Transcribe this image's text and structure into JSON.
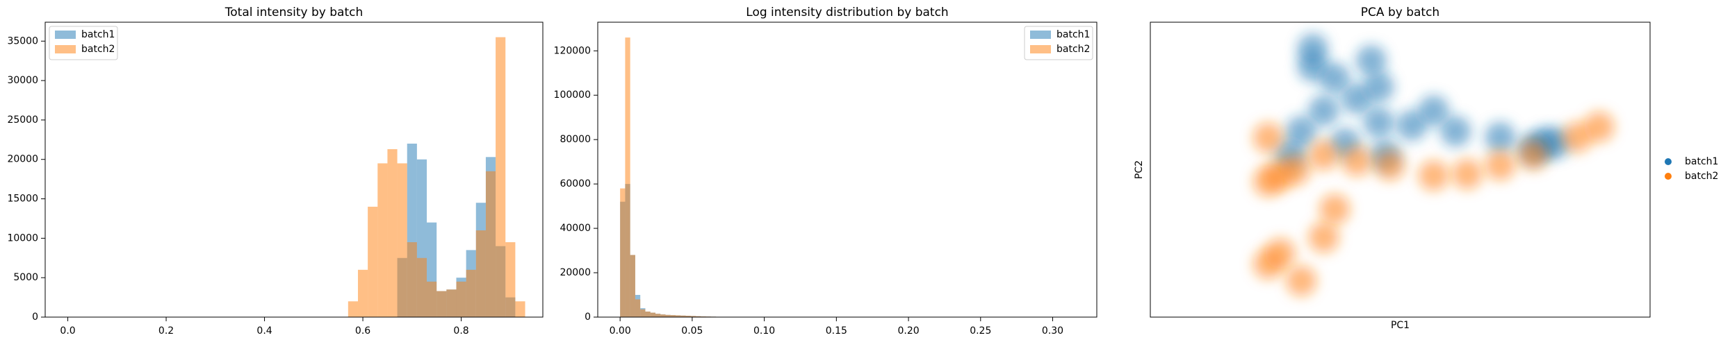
{
  "chart_data": [
    {
      "type": "histogram",
      "title": "Total intensity by batch",
      "alpha": 0.5,
      "legend": "upper left",
      "bins": [
        0.57,
        0.59,
        0.61,
        0.63,
        0.65,
        0.67,
        0.69,
        0.71,
        0.73,
        0.75,
        0.77,
        0.79,
        0.81,
        0.83,
        0.85,
        0.87,
        0.89,
        0.91,
        0.93
      ],
      "series": [
        {
          "name": "batch1",
          "color": "#1f77b4",
          "values": [
            0,
            0,
            0,
            0,
            0,
            7500,
            22000,
            20000,
            12000,
            3300,
            3500,
            5000,
            8500,
            14500,
            20300,
            9000,
            2500,
            0
          ]
        },
        {
          "name": "batch2",
          "color": "#ff7f0e",
          "values": [
            2000,
            6000,
            14000,
            19500,
            21300,
            19500,
            9500,
            7500,
            4500,
            3300,
            3500,
            4500,
            6000,
            11000,
            18500,
            35500,
            9500,
            2000
          ]
        }
      ],
      "xlim": [
        -0.046,
        0.966
      ],
      "ylim": [
        0,
        37400
      ],
      "xticks": [
        {
          "value": 0,
          "label": "0.0"
        },
        {
          "value": 0.2,
          "label": "0.2"
        },
        {
          "value": 0.4,
          "label": "0.4"
        },
        {
          "value": 0.6,
          "label": "0.6"
        },
        {
          "value": 0.8,
          "label": "0.8"
        }
      ],
      "yticks": [
        0,
        5000,
        10000,
        15000,
        20000,
        25000,
        30000,
        35000
      ]
    },
    {
      "type": "histogram",
      "title": "Log intensity distribution by batch",
      "alpha": 0.5,
      "legend": "upper right",
      "bins": [
        0,
        0.0035,
        0.007,
        0.0105,
        0.014,
        0.0175,
        0.021,
        0.0245,
        0.028,
        0.0315,
        0.035,
        0.0385,
        0.042,
        0.0455,
        0.049,
        0.0525,
        0.056,
        0.0595,
        0.063,
        0.0665,
        0.07
      ],
      "series": [
        {
          "name": "batch1",
          "color": "#1f77b4",
          "values": [
            52000,
            60000,
            28000,
            10000,
            4000,
            2500,
            2000,
            1500,
            1200,
            1000,
            900,
            800,
            700,
            600,
            500,
            400,
            300,
            250,
            200,
            150
          ]
        },
        {
          "name": "batch2",
          "color": "#ff7f0e",
          "values": [
            58000,
            126000,
            28000,
            8000,
            3500,
            2500,
            2000,
            1500,
            1200,
            1000,
            900,
            800,
            700,
            600,
            500,
            400,
            300,
            250,
            200,
            150
          ]
        }
      ],
      "xlim": [
        -0.0155,
        0.3306
      ],
      "ylim": [
        0,
        132900
      ],
      "xticks": [
        {
          "value": 0,
          "label": "0.00"
        },
        {
          "value": 0.05,
          "label": "0.05"
        },
        {
          "value": 0.1,
          "label": "0.10"
        },
        {
          "value": 0.15,
          "label": "0.15"
        },
        {
          "value": 0.2,
          "label": "0.20"
        },
        {
          "value": 0.25,
          "label": "0.25"
        },
        {
          "value": 0.3,
          "label": "0.30"
        }
      ],
      "yticks": [
        0,
        20000,
        40000,
        60000,
        80000,
        100000,
        120000
      ]
    },
    {
      "type": "scatter",
      "title": "PCA by batch",
      "xlabel": "PC1",
      "ylabel": "PC2",
      "legend": "outside right",
      "xlim": [
        0,
        100
      ],
      "ylim": [
        0,
        100
      ],
      "series": [
        {
          "name": "batch1",
          "color": "#1f77b4",
          "x": [
            32.5,
            36.9,
            41.3,
            34.7,
            45.7,
            52.3,
            61.1,
            70,
            78.8,
            81,
            76.6,
            30.2,
            39,
            56.7,
            45.7,
            32.5,
            44.2,
            28,
            47
          ],
          "values": [
            85,
            81,
            74,
            70,
            66,
            65,
            63,
            61,
            59,
            59,
            57,
            63,
            59,
            70,
            78,
            91,
            87,
            55,
            55
          ]
        },
        {
          "name": "batch2",
          "color": "#ff7f0e",
          "x": [
            25.8,
            29,
            23.6,
            56.7,
            63.4,
            70,
            76.6,
            85.4,
            89.8,
            41.3,
            47.9,
            34.7,
            23.6,
            26,
            30.2,
            34.7,
            36.9,
            23.6
          ],
          "values": [
            48,
            50,
            46,
            48,
            48.5,
            51.5,
            55,
            61,
            64.5,
            53,
            51.5,
            55,
            18,
            21.6,
            12.3,
            27,
            36.6,
            60.8
          ]
        }
      ]
    }
  ]
}
